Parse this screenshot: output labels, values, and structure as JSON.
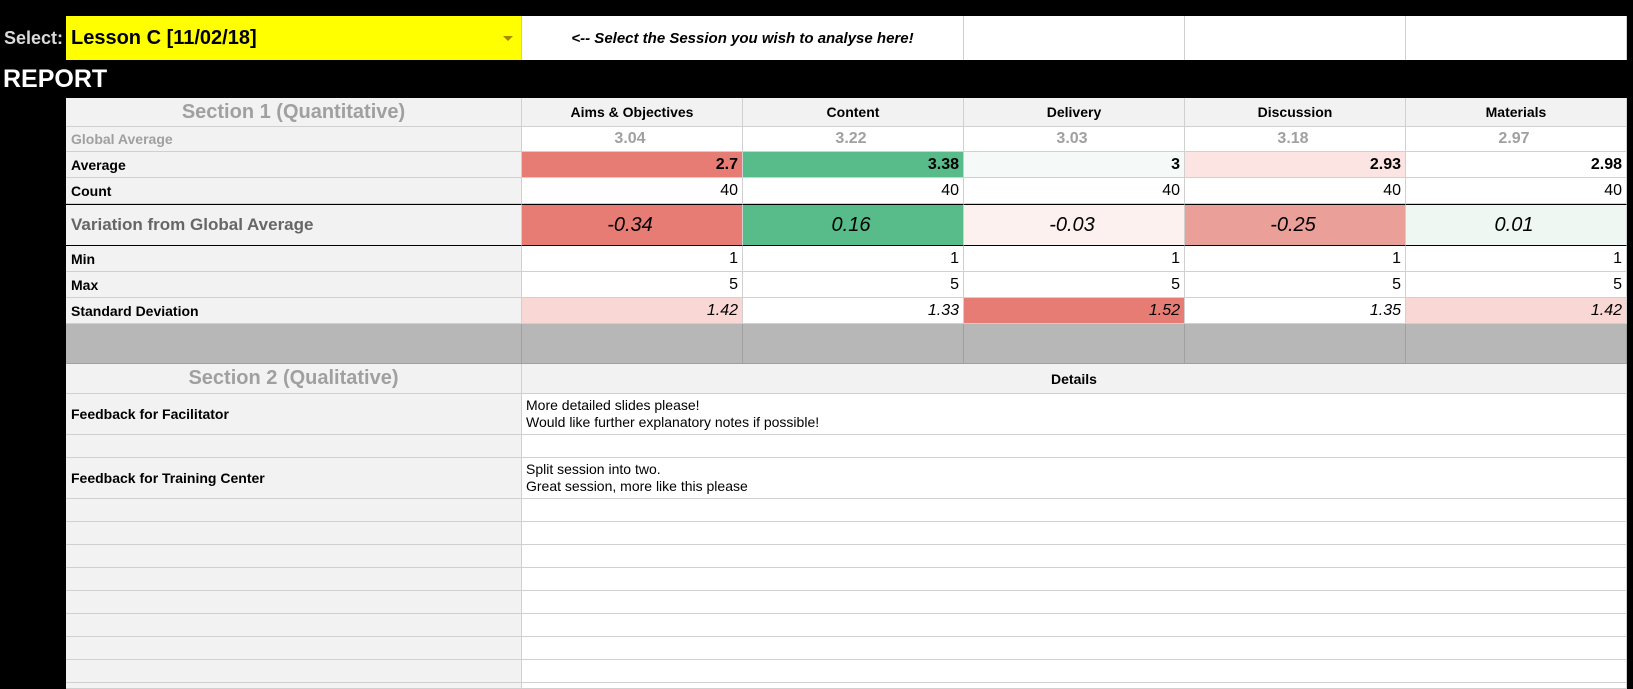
{
  "selector": {
    "label": "Select:",
    "value": "Lesson C [11/02/18]",
    "hint": "<-- Select the Session you wish to analyse here!"
  },
  "report_title": "REPORT",
  "section1": {
    "title": "Section 1 (Quantitative)",
    "columns": [
      "Aims & Objectives",
      "Content",
      "Delivery",
      "Discussion",
      "Materials"
    ],
    "rows": {
      "global_average": {
        "label": "Global Average",
        "values": [
          "3.04",
          "3.22",
          "3.03",
          "3.18",
          "2.97"
        ]
      },
      "average": {
        "label": "Average",
        "values": [
          "2.7",
          "3.38",
          "3",
          "2.93",
          "2.98"
        ]
      },
      "count": {
        "label": "Count",
        "values": [
          "40",
          "40",
          "40",
          "40",
          "40"
        ]
      },
      "variation": {
        "label": "Variation from Global Average",
        "values": [
          "-0.34",
          "0.16",
          "-0.03",
          "-0.25",
          "0.01"
        ]
      },
      "min": {
        "label": "Min",
        "values": [
          "1",
          "1",
          "1",
          "1",
          "1"
        ]
      },
      "max": {
        "label": "Max",
        "values": [
          "5",
          "5",
          "5",
          "5",
          "5"
        ]
      },
      "std_dev": {
        "label": "Standard Deviation",
        "values": [
          "1.42",
          "1.33",
          "1.52",
          "1.35",
          "1.42"
        ]
      }
    },
    "colors": {
      "average": [
        "#e67c73",
        "#57bb8a",
        "#f5f9f7",
        "#fce4e2",
        "#ffffff"
      ],
      "variation": [
        "#e67c73",
        "#57bb8a",
        "#fdf1f0",
        "#eb9f99",
        "#eef7f2"
      ],
      "std_dev": [
        "#f8d7d4",
        "#ffffff",
        "#e67c73",
        "#ffffff",
        "#f8d7d4"
      ]
    }
  },
  "section2": {
    "title": "Section 2 (Qualitative)",
    "details_header": "Details",
    "rows": [
      {
        "label": "Feedback for Facilitator",
        "lines": [
          "More detailed slides please!",
          "Would like further explanatory notes if possible!"
        ]
      },
      {
        "label": "",
        "lines": []
      },
      {
        "label": "Feedback for Training Center",
        "lines": [
          "Split session into two.",
          "Great session, more like this please"
        ]
      }
    ]
  }
}
